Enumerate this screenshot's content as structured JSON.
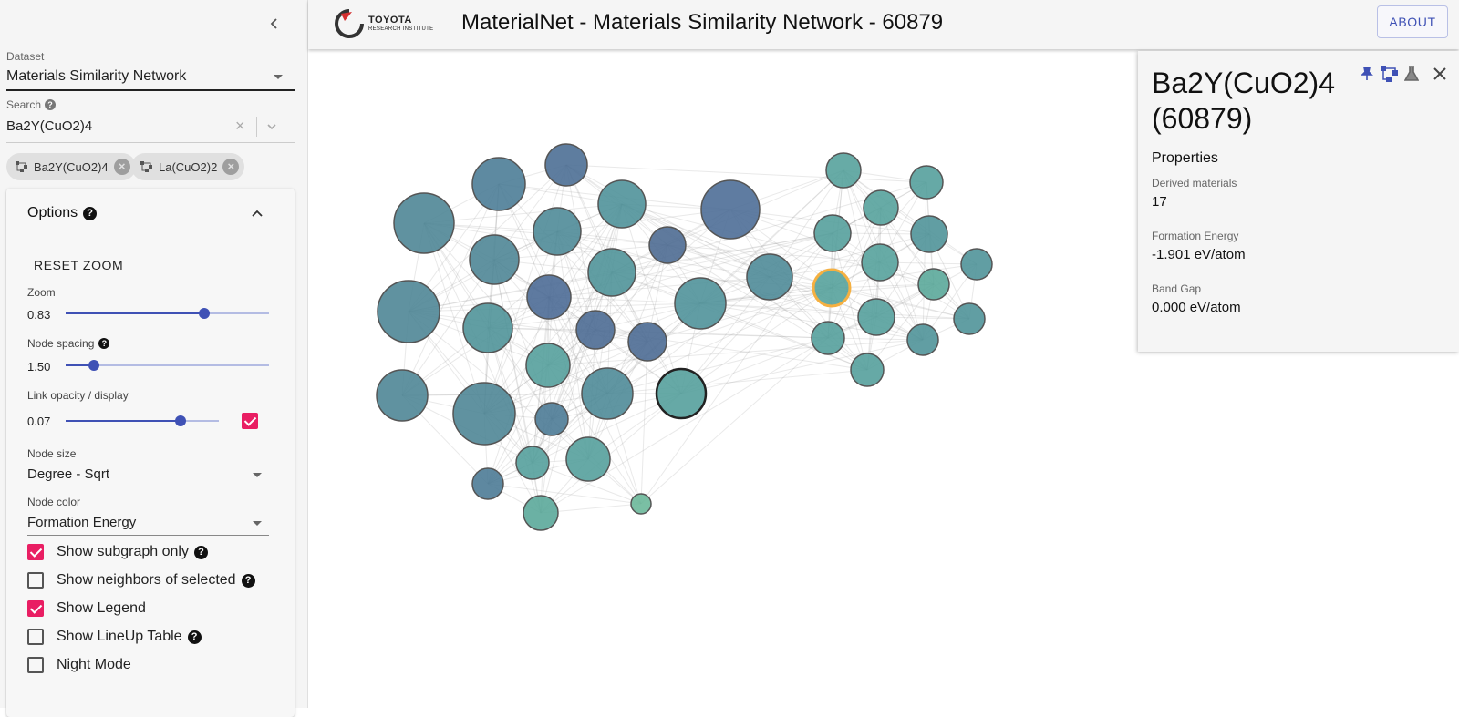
{
  "sidebar": {
    "dataset": {
      "label": "Dataset",
      "value": "Materials Similarity Network"
    },
    "search": {
      "label": "Search",
      "value": "Ba2Y(CuO2)4"
    },
    "chips": [
      {
        "label": "Ba2Y(CuO2)4"
      },
      {
        "label": "La(CuO2)2"
      }
    ],
    "options": {
      "title": "Options",
      "reset_zoom": "RESET ZOOM",
      "zoom": {
        "label": "Zoom",
        "value": "0.83",
        "fraction": 0.68
      },
      "node_spacing": {
        "label": "Node spacing",
        "value": "1.50",
        "fraction": 0.14
      },
      "link_opacity": {
        "label": "Link opacity / display",
        "value": "0.07",
        "fraction": 0.75,
        "display_checked": true
      },
      "node_size": {
        "label": "Node size",
        "value": "Degree - Sqrt"
      },
      "node_color": {
        "label": "Node color",
        "value": "Formation Energy"
      },
      "checkboxes": [
        {
          "label": "Show subgraph only",
          "checked": true,
          "help": true
        },
        {
          "label": "Show neighbors of selected",
          "checked": false,
          "help": true
        },
        {
          "label": "Show Legend",
          "checked": true,
          "help": false
        },
        {
          "label": "Show LineUp Table",
          "checked": false,
          "help": true
        },
        {
          "label": "Night Mode",
          "checked": false,
          "help": false
        }
      ]
    }
  },
  "header": {
    "logo_line1": "TOYOTA",
    "logo_line2": "RESEARCH INSTITUTE",
    "title": "MaterialNet - Materials Similarity Network - 60879",
    "about": "ABOUT"
  },
  "detail": {
    "title": "Ba2Y(CuO2)4 (60879)",
    "properties_heading": "Properties",
    "properties": [
      {
        "label": "Derived materials",
        "value": "17"
      },
      {
        "label": "Formation Energy",
        "value": "-1.901 eV/atom"
      },
      {
        "label": "Band Gap",
        "value": "0.000 eV/atom"
      }
    ]
  },
  "colors": {
    "accent": "#3f51b5",
    "checkbox": "#e91e63",
    "selected_ring": "#f5b041"
  }
}
